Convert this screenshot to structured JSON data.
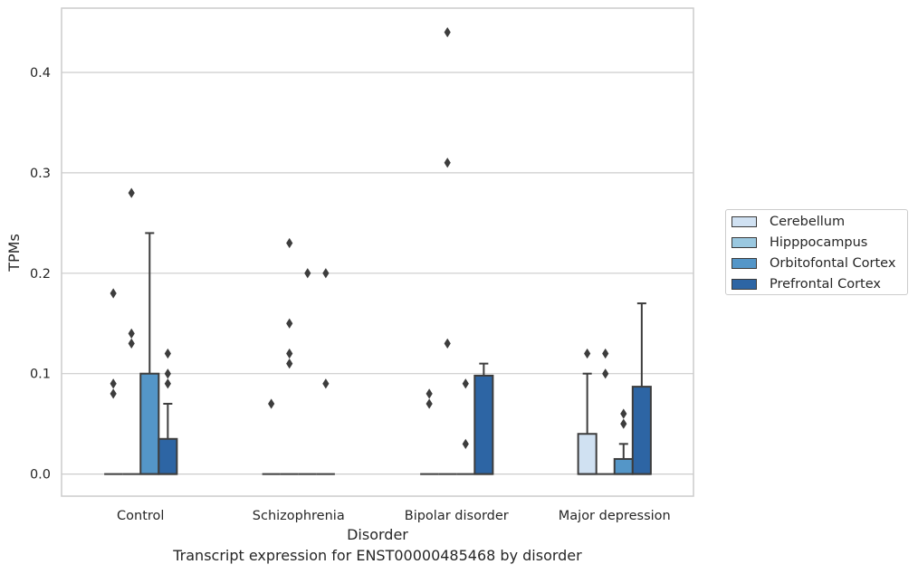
{
  "caption": "Transcript expression for ENST00000485468 by disorder",
  "chart_data": {
    "type": "box",
    "xlabel": "Disorder",
    "ylabel": "TPMs",
    "ylim": [
      -0.022,
      0.464
    ],
    "yticks": [
      0.0,
      0.1,
      0.2,
      0.3,
      0.4
    ],
    "ytick_labels": [
      "0.0",
      "0.1",
      "0.2",
      "0.3",
      "0.4"
    ],
    "grid": "horizontal",
    "legend_placement": "right",
    "categories": [
      "Control",
      "Schizophrenia",
      "Bipolar disorder",
      "Major depression"
    ],
    "series": [
      {
        "name": "Cerebellum",
        "color": "#d0e1f2",
        "boxes": [
          {
            "q1": 0,
            "median": 0,
            "q3": 0,
            "whisker_low": 0,
            "whisker_high": 0,
            "outliers": [
              0.08,
              0.09,
              0.18
            ]
          },
          {
            "q1": 0,
            "median": 0,
            "q3": 0,
            "whisker_low": 0,
            "whisker_high": 0,
            "outliers": [
              0.07
            ]
          },
          {
            "q1": 0,
            "median": 0,
            "q3": 0,
            "whisker_low": 0,
            "whisker_high": 0,
            "outliers": [
              0.07,
              0.08
            ]
          },
          {
            "q1": 0,
            "median": 0,
            "q3": 0.04,
            "whisker_low": 0,
            "whisker_high": 0.1,
            "outliers": [
              0.12
            ]
          }
        ]
      },
      {
        "name": "Hipppocampus",
        "color": "#9ac8e0",
        "boxes": [
          {
            "q1": 0,
            "median": 0,
            "q3": 0,
            "whisker_low": 0,
            "whisker_high": 0,
            "outliers": [
              0.13,
              0.14,
              0.28
            ]
          },
          {
            "q1": 0,
            "median": 0,
            "q3": 0,
            "whisker_low": 0,
            "whisker_high": 0,
            "outliers": [
              0.11,
              0.12,
              0.15,
              0.23
            ]
          },
          {
            "q1": 0,
            "median": 0,
            "q3": 0,
            "whisker_low": 0,
            "whisker_high": 0,
            "outliers": [
              0.13,
              0.31,
              0.44
            ]
          },
          {
            "q1": 0,
            "median": 0,
            "q3": 0,
            "whisker_low": 0,
            "whisker_high": 0,
            "outliers": [
              0.1,
              0.12
            ]
          }
        ]
      },
      {
        "name": "Orbitofontal Cortex",
        "color": "#5496c8",
        "boxes": [
          {
            "q1": 0,
            "median": 0,
            "q3": 0.1,
            "whisker_low": 0,
            "whisker_high": 0.24,
            "outliers": []
          },
          {
            "q1": 0,
            "median": 0,
            "q3": 0,
            "whisker_low": 0,
            "whisker_high": 0,
            "outliers": [
              0.2
            ]
          },
          {
            "q1": 0,
            "median": 0,
            "q3": 0,
            "whisker_low": 0,
            "whisker_high": 0,
            "outliers": [
              0.03,
              0.09
            ]
          },
          {
            "q1": 0,
            "median": 0,
            "q3": 0.015,
            "whisker_low": 0,
            "whisker_high": 0.03,
            "outliers": [
              0.05,
              0.06
            ]
          }
        ]
      },
      {
        "name": "Prefrontal Cortex",
        "color": "#2d65a4",
        "boxes": [
          {
            "q1": 0,
            "median": 0,
            "q3": 0.035,
            "whisker_low": 0,
            "whisker_high": 0.07,
            "outliers": [
              0.09,
              0.1,
              0.12
            ]
          },
          {
            "q1": 0,
            "median": 0,
            "q3": 0,
            "whisker_low": 0,
            "whisker_high": 0,
            "outliers": [
              0.09,
              0.2
            ]
          },
          {
            "q1": 0,
            "median": 0,
            "q3": 0.098,
            "whisker_low": 0,
            "whisker_high": 0.11,
            "outliers": []
          },
          {
            "q1": 0,
            "median": 0,
            "q3": 0.087,
            "whisker_low": 0,
            "whisker_high": 0.17,
            "outliers": []
          }
        ]
      }
    ]
  }
}
